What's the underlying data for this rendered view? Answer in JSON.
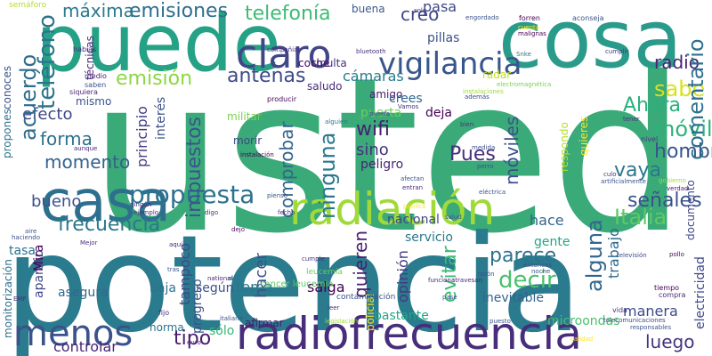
{
  "words": [
    {
      "text": "usted",
      "color": "#3aaa78",
      "rot": 0
    },
    {
      "text": "potencia",
      "color": "#2a7b8e",
      "rot": 0
    },
    {
      "text": "puede",
      "color": "#25a286",
      "rot": 0
    },
    {
      "text": "cosa",
      "color": "#2a9b8a",
      "rot": 0
    },
    {
      "text": "radiofrecuencia",
      "color": "#472d7b",
      "rot": 0
    },
    {
      "text": "radiación",
      "color": "#a0da39",
      "rot": 0
    },
    {
      "text": "vigilancia",
      "color": "#39568c",
      "rot": 0
    },
    {
      "text": "casa",
      "color": "#2d708e",
      "rot": 0
    },
    {
      "text": "claro",
      "color": "#404688",
      "rot": 0
    },
    {
      "text": "menos",
      "color": "#3b528b",
      "rot": 0
    },
    {
      "text": "propuesta",
      "color": "#2c728e",
      "rot": 0
    },
    {
      "text": "frecuencia",
      "color": "#2a788e",
      "rot": 0
    },
    {
      "text": "emisiones",
      "color": "#2e6e8e",
      "rot": 0
    },
    {
      "text": "telefonía",
      "color": "#3dbc74",
      "rot": 0
    },
    {
      "text": "antenas",
      "color": "#3e4a89",
      "rot": 0
    },
    {
      "text": "emisión",
      "color": "#8ed645",
      "rot": 0
    },
    {
      "text": "efecto",
      "color": "#3f4788",
      "rot": 0
    },
    {
      "text": "forma",
      "color": "#2d718e",
      "rot": 0
    },
    {
      "text": "momento",
      "color": "#34618d",
      "rot": 0
    },
    {
      "text": "bueno",
      "color": "#3b528b",
      "rot": 0
    },
    {
      "text": "Pues",
      "color": "#472f7d",
      "rot": 0
    },
    {
      "text": "hombre",
      "color": "#39568c",
      "rot": 0
    },
    {
      "text": "vaya",
      "color": "#2a778e",
      "rot": 0
    },
    {
      "text": "señales",
      "color": "#3b528b",
      "rot": 0
    },
    {
      "text": "Italia",
      "color": "#5ec962",
      "rot": 0
    },
    {
      "text": "decir",
      "color": "#4ac16d",
      "rot": 0
    },
    {
      "text": "parece",
      "color": "#2c728e",
      "rot": 0
    },
    {
      "text": "sabe",
      "color": "#d8e219",
      "rot": 0
    },
    {
      "text": "Ahora",
      "color": "#2ab07f",
      "rot": 0
    },
    {
      "text": "móvil",
      "color": "#2db27d",
      "rot": 0
    },
    {
      "text": "wifi",
      "color": "#481f70",
      "rot": 0
    },
    {
      "text": "sino",
      "color": "#46327e",
      "rot": 0
    },
    {
      "text": "radio",
      "color": "#482475",
      "rot": 0
    },
    {
      "text": "tipo",
      "color": "#481b6d",
      "rot": 0
    },
    {
      "text": "luego",
      "color": "#46337f",
      "rot": 0
    },
    {
      "text": "controlar",
      "color": "#482576",
      "rot": 0
    },
    {
      "text": "tema",
      "color": "#2a768e",
      "rot": 0
    },
    {
      "text": "salga",
      "color": "#440154",
      "rot": 0
    },
    {
      "text": "hace",
      "color": "#32648e",
      "rot": 0
    },
    {
      "text": "nacional",
      "color": "#3f4889",
      "rot": 0
    },
    {
      "text": "gente",
      "color": "#21a685",
      "rot": 0
    },
    {
      "text": "servicio",
      "color": "#2a788e",
      "rot": 0
    },
    {
      "text": "manera",
      "color": "#3e4a89",
      "rot": 0
    },
    {
      "text": "bastante",
      "color": "#22a785",
      "rot": 0
    },
    {
      "text": "coche",
      "color": "#46085c",
      "rot": 0
    },
    {
      "text": "cámaras",
      "color": "#287c8e",
      "rot": 0
    },
    {
      "text": "pillas",
      "color": "#3b528b",
      "rot": 0
    },
    {
      "text": "multa",
      "color": "#46307e",
      "rot": 0
    },
    {
      "text": "amigo",
      "color": "#48186a",
      "rot": 0
    },
    {
      "text": "puerta",
      "color": "#6ccd5a",
      "rot": 0
    },
    {
      "text": "deja",
      "color": "#440154",
      "rot": 0
    },
    {
      "text": "peligro",
      "color": "#482475",
      "rot": 0
    },
    {
      "text": "morir",
      "color": "#3f4788",
      "rot": 0
    },
    {
      "text": "militar",
      "color": "#7ad151",
      "rot": 0
    },
    {
      "text": "mismo",
      "color": "#3b528b",
      "rot": 0
    },
    {
      "text": "máxima",
      "color": "#2a788e",
      "rot": 0
    },
    {
      "text": "creo",
      "color": "#3f4788",
      "rot": 0
    },
    {
      "text": "pasa",
      "color": "#3e4989",
      "rot": 0
    },
    {
      "text": "buena",
      "color": "#38598c",
      "rot": 0
    },
    {
      "text": "según",
      "color": "#3b528b",
      "rot": 0
    },
    {
      "text": "baja",
      "color": "#2d718e",
      "rot": 0
    },
    {
      "text": "norma",
      "color": "#2c728e",
      "rot": 0
    },
    {
      "text": "sólo",
      "color": "#35b779",
      "rot": 0
    },
    {
      "text": "afirmar",
      "color": "#482071",
      "rot": 0
    },
    {
      "text": "asegura",
      "color": "#31688e",
      "rot": 0
    },
    {
      "text": "microondas",
      "color": "#46c06f",
      "rot": 0
    },
    {
      "text": "inevitable",
      "color": "#33638d",
      "rot": 0
    },
    {
      "text": "saludo",
      "color": "#482878",
      "rot": 0
    },
    {
      "text": "crees",
      "color": "#32648e",
      "rot": 0
    },
    {
      "text": "teléfono",
      "color": "#2c738e",
      "rot": -90
    },
    {
      "text": "acuerdo",
      "color": "#2f6c8e",
      "rot": -90
    },
    {
      "text": "impuestos",
      "color": "#39558c",
      "rot": -90
    },
    {
      "text": "principio",
      "color": "#433e85",
      "rot": -90
    },
    {
      "text": "interés",
      "color": "#3b528b",
      "rot": -90
    },
    {
      "text": "ninguna",
      "color": "#2a788e",
      "rot": -90
    },
    {
      "text": "comprobar",
      "color": "#32658e",
      "rot": -90
    },
    {
      "text": "móviles",
      "color": "#3b528b",
      "rot": -90
    },
    {
      "text": "comentario",
      "color": "#2d708e",
      "rot": -90
    },
    {
      "text": "alguna",
      "color": "#31678e",
      "rot": -90
    },
    {
      "text": "trabajo",
      "color": "#30698e",
      "rot": -90
    },
    {
      "text": "evitar",
      "color": "#3bbb75",
      "rot": -90
    },
    {
      "text": "opinión",
      "color": "#453882",
      "rot": -90
    },
    {
      "text": "quieren",
      "color": "#482071",
      "rot": -90
    },
    {
      "text": "hacer",
      "color": "#3b528b",
      "rot": -90
    },
    {
      "text": "tampoco",
      "color": "#3f4788",
      "rot": -90
    },
    {
      "text": "progreso",
      "color": "#3b528b",
      "rot": -90
    },
    {
      "text": "aparato",
      "color": "#3f4788",
      "rot": -90
    },
    {
      "text": "Mira",
      "color": "#440154",
      "rot": -90
    },
    {
      "text": "monitorización",
      "color": "#2d718e",
      "rot": -90
    },
    {
      "text": "conoces",
      "color": "#3b528b",
      "rot": -90
    },
    {
      "text": "propones",
      "color": "#2c728e",
      "rot": -90
    },
    {
      "text": "electricidad",
      "color": "#3f4788",
      "rot": -90
    },
    {
      "text": "documento",
      "color": "#3f4788",
      "rot": -90
    },
    {
      "text": "respondo",
      "color": "#b5de2b",
      "rot": -90
    },
    {
      "text": "quieres",
      "color": "#fde725",
      "rot": -90
    },
    {
      "text": "técnicas",
      "color": "#482878",
      "rot": -90
    },
    {
      "text": "policial",
      "color": "#fde725",
      "rot": -90
    },
    {
      "text": "tasa",
      "color": "#2c728e",
      "rot": 0
    },
    {
      "text": "radar",
      "color": "#c2df23",
      "rot": 0
    },
    {
      "text": "contaminación",
      "color": "#3b528b",
      "rot": 0
    },
    {
      "text": "cancer leucemia",
      "color": "#5ec962",
      "rot": 0
    },
    {
      "text": "leucemia",
      "color": "#6ccd5a",
      "rot": 0
    },
    {
      "text": "semáforo",
      "color": "#b5de2b",
      "rot": 0
    },
    {
      "text": "medio",
      "color": "#482071",
      "rot": 0
    },
    {
      "text": "saben",
      "color": "#3b528b",
      "rot": 0
    },
    {
      "text": "siquiera",
      "color": "#482878",
      "rot": 0
    },
    {
      "text": "habías",
      "color": "#482878",
      "rot": 0
    },
    {
      "text": "compañías",
      "color": "#46337f",
      "rot": 0
    },
    {
      "text": "bluetooth",
      "color": "#46307e",
      "rot": 0
    },
    {
      "text": "solo",
      "color": "#453882",
      "rot": 0
    },
    {
      "text": "Vamos",
      "color": "#46327e",
      "rot": 0
    },
    {
      "text": "producir",
      "color": "#46085c",
      "rot": 0
    },
    {
      "text": "alguien",
      "color": "#2a788e",
      "rot": 0
    },
    {
      "text": "engordado",
      "color": "#3b528b",
      "rot": 0
    },
    {
      "text": "además",
      "color": "#3e4989",
      "rot": 0
    },
    {
      "text": "instalaciones",
      "color": "#a0da39",
      "rot": 0
    },
    {
      "text": "electromagnética",
      "color": "#7ad151",
      "rot": 0
    },
    {
      "text": "forren",
      "color": "#440154",
      "rot": 0
    },
    {
      "text": "cuenta",
      "color": "#fde725",
      "rot": 0
    },
    {
      "text": "malignas",
      "color": "#440154",
      "rot": 0
    },
    {
      "text": "aconseja",
      "color": "#3b528b",
      "rot": 0
    },
    {
      "text": "cumplir",
      "color": "#46337f",
      "rot": 0
    },
    {
      "text": "Snke",
      "color": "#2a788e",
      "rot": 0
    },
    {
      "text": "tener",
      "color": "#46327e",
      "rot": 0
    },
    {
      "text": "nivel",
      "color": "#443a83",
      "rot": 0
    },
    {
      "text": "culo",
      "color": "#46327e",
      "rot": 0
    },
    {
      "text": "artificialmente",
      "color": "#3b528b",
      "rot": 0
    },
    {
      "text": "gobierno",
      "color": "#a0da39",
      "rot": 0
    },
    {
      "text": "verdad",
      "color": "#482071",
      "rot": 0
    },
    {
      "text": "medida",
      "color": "#3b528b",
      "rot": 0
    },
    {
      "text": "perro",
      "color": "#3b528b",
      "rot": 0
    },
    {
      "text": "bien",
      "color": "#46327e",
      "rot": 0
    },
    {
      "text": "ejemplo",
      "color": "#482878",
      "rot": 0
    },
    {
      "text": "digo",
      "color": "#46327e",
      "rot": 0
    },
    {
      "text": "fecha",
      "color": "#46327e",
      "rot": 0
    },
    {
      "text": "dejo",
      "color": "#46085c",
      "rot": 0
    },
    {
      "text": "pienso",
      "color": "#3b528b",
      "rot": 0
    },
    {
      "text": "aire",
      "color": "#3b528b",
      "rot": 0
    },
    {
      "text": "Mejor",
      "color": "#46327e",
      "rot": 0
    },
    {
      "text": "aquí",
      "color": "#482878",
      "rot": 0
    },
    {
      "text": "tras",
      "color": "#3b528b",
      "rot": 0
    },
    {
      "text": "nick",
      "color": "#2a788e",
      "rot": 0
    },
    {
      "text": "national",
      "color": "#482878",
      "rot": 0
    },
    {
      "text": "cumple",
      "color": "#46327e",
      "rot": 0
    },
    {
      "text": "funciona",
      "color": "#482878",
      "rot": 0
    },
    {
      "text": "atravesan",
      "color": "#482878",
      "rot": 0
    },
    {
      "text": "noche",
      "color": "#3b528b",
      "rot": 0
    },
    {
      "text": "pollo",
      "color": "#46085c",
      "rot": 0
    },
    {
      "text": "televisión",
      "color": "#3e4989",
      "rot": 0
    },
    {
      "text": "razón",
      "color": "#3b528b",
      "rot": 0
    },
    {
      "text": "entonces",
      "color": "#3b528b",
      "rot": 0
    },
    {
      "text": "telecomunicaciones",
      "color": "#3e4989",
      "rot": 0
    },
    {
      "text": "tiempo",
      "color": "#440154",
      "rot": 0
    },
    {
      "text": "compra",
      "color": "#482878",
      "rot": 0
    },
    {
      "text": "responsables",
      "color": "#3b528b",
      "rot": 0
    },
    {
      "text": "vida",
      "color": "#46327e",
      "rot": 0
    },
    {
      "text": "leer",
      "color": "#46327e",
      "rot": 0
    },
    {
      "text": "legislación",
      "color": "#a0da39",
      "rot": 0
    },
    {
      "text": "puesto",
      "color": "#3b528b",
      "rot": 0
    },
    {
      "text": "italiano",
      "color": "#3b528b",
      "rot": 0
    },
    {
      "text": "euro",
      "color": "#46327e",
      "rot": 0
    },
    {
      "text": "fijo",
      "color": "#46327e",
      "rot": 0
    },
    {
      "text": "calidad",
      "color": "#fde725",
      "rot": 0
    },
    {
      "text": "eléctrica",
      "color": "#3b528b",
      "rot": 0
    },
    {
      "text": "salud",
      "color": "#3b528b",
      "rot": 0
    },
    {
      "text": "entran",
      "color": "#482878",
      "rot": 0
    },
    {
      "text": "afectan",
      "color": "#3b528b",
      "rot": 0
    },
    {
      "text": "pública",
      "color": "#fde725",
      "rot": 0
    },
    {
      "text": "instalación",
      "color": "#440154",
      "rot": 0
    },
    {
      "text": "aunque",
      "color": "#482878",
      "rot": 0
    },
    {
      "text": "ningún",
      "color": "#482878",
      "rot": 0
    },
    {
      "text": "haciendo",
      "color": "#3b528b",
      "rot": 0
    },
    {
      "text": "puerta",
      "color": "#3b528b",
      "rot": 0
    },
    {
      "text": "EMF",
      "color": "#46327e",
      "rot": 0
    },
    {
      "text": "pase",
      "color": "#3b528b",
      "rot": 0
    }
  ]
}
